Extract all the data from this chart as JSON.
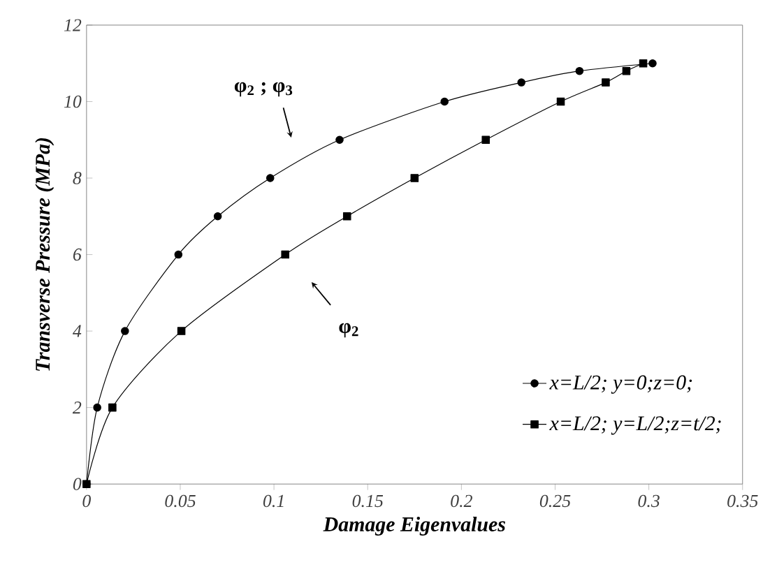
{
  "chart_data": {
    "type": "line",
    "xlabel": "Damage Eigenvalues",
    "ylabel": "Transverse Pressure (MPa)",
    "xlim": [
      0,
      0.35
    ],
    "ylim": [
      0,
      12
    ],
    "xticks": [
      0,
      0.05,
      0.1,
      0.15,
      0.2,
      0.25,
      0.3,
      0.35
    ],
    "yticks": [
      0,
      2,
      4,
      6,
      8,
      10,
      12
    ],
    "grid": false,
    "legend": "bottom right",
    "line_style": "solid",
    "series": [
      {
        "name": "x=L/2; y=0;z=0;",
        "color": "#000000",
        "marker": "circle",
        "x": [
          0,
          0.0057,
          0.0205,
          0.049,
          0.07,
          0.098,
          0.135,
          0.191,
          0.232,
          0.263,
          0.302
        ],
        "values": [
          0,
          2,
          4,
          6,
          7,
          8,
          9,
          10,
          10.5,
          10.8,
          11
        ]
      },
      {
        "name": "x=L/2; y=L/2;z=t/2;",
        "color": "#000000",
        "marker": "square",
        "x": [
          0,
          0.0138,
          0.0506,
          0.106,
          0.139,
          0.175,
          0.213,
          0.253,
          0.277,
          0.288,
          0.297
        ],
        "values": [
          0,
          2,
          4,
          6,
          7,
          8,
          9,
          10,
          10.5,
          10.8,
          11
        ]
      }
    ],
    "annotations": [
      "φ$_{2}$ ; φ$_{3}$",
      "φ$_{2}$"
    ]
  }
}
